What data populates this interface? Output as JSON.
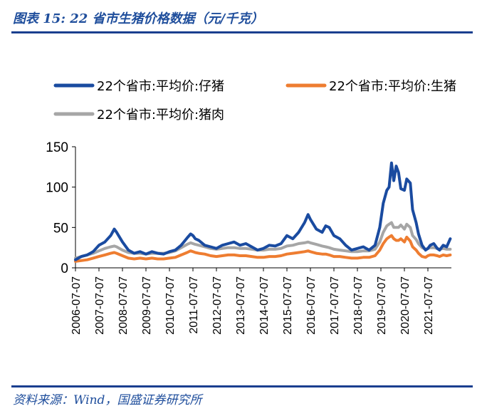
{
  "header": {
    "title": "图表 15:  22 省市生猪价格数据（元/千克）"
  },
  "footer": {
    "source": "资料来源：Wind，国盛证券研究所"
  },
  "chart_data": {
    "type": "line",
    "title": "",
    "xlabel": "",
    "ylabel": "",
    "ylim": [
      0,
      150
    ],
    "yticks": [
      0,
      50,
      100,
      150
    ],
    "xtick_labels": [
      "2006-07-07",
      "2007-07-07",
      "2008-07-07",
      "2009-07-07",
      "2010-07-07",
      "2011-07-07",
      "2012-07-07",
      "2013-07-07",
      "2014-07-07",
      "2015-07-07",
      "2016-07-07",
      "2017-07-07",
      "2018-07-07",
      "2019-07-07",
      "2020-07-07",
      "2021-07-07"
    ],
    "x_start_year": 2006.5,
    "x_end_year": 2022.5,
    "grid": false,
    "legend": "top",
    "x_years": [
      2006.5,
      2006.75,
      2007.0,
      2007.25,
      2007.5,
      2007.75,
      2008.0,
      2008.15,
      2008.25,
      2008.5,
      2008.75,
      2009.0,
      2009.25,
      2009.5,
      2009.75,
      2010.0,
      2010.25,
      2010.5,
      2010.75,
      2011.0,
      2011.25,
      2011.4,
      2011.5,
      2011.6,
      2011.75,
      2012.0,
      2012.25,
      2012.5,
      2012.75,
      2013.0,
      2013.25,
      2013.5,
      2013.75,
      2014.0,
      2014.25,
      2014.5,
      2014.75,
      2015.0,
      2015.25,
      2015.5,
      2015.75,
      2016.0,
      2016.25,
      2016.4,
      2016.5,
      2016.75,
      2017.0,
      2017.15,
      2017.3,
      2017.5,
      2017.75,
      2018.0,
      2018.25,
      2018.5,
      2018.75,
      2019.0,
      2019.25,
      2019.45,
      2019.6,
      2019.75,
      2019.85,
      2019.95,
      2020.05,
      2020.15,
      2020.25,
      2020.35,
      2020.5,
      2020.6,
      2020.75,
      2020.85,
      2021.0,
      2021.1,
      2021.25,
      2021.4,
      2021.5,
      2021.6,
      2021.75,
      2021.9,
      2022.0,
      2022.15,
      2022.3,
      2022.45
    ],
    "series": [
      {
        "name": "22个省市:平均价:仔猪",
        "color": "#1a4ba0",
        "values": [
          10,
          14,
          16,
          20,
          28,
          32,
          40,
          48,
          44,
          32,
          22,
          18,
          20,
          17,
          20,
          18,
          17,
          20,
          22,
          28,
          37,
          42,
          40,
          36,
          34,
          28,
          26,
          24,
          28,
          30,
          32,
          28,
          30,
          26,
          22,
          24,
          28,
          27,
          30,
          40,
          36,
          44,
          56,
          66,
          60,
          48,
          44,
          52,
          50,
          40,
          36,
          28,
          22,
          24,
          26,
          22,
          28,
          50,
          80,
          96,
          100,
          130,
          108,
          126,
          118,
          98,
          96,
          110,
          105,
          72,
          56,
          42,
          28,
          22,
          24,
          28,
          30,
          24,
          22,
          28,
          26,
          36
        ]
      },
      {
        "name": "22个省市:平均价:生猪",
        "color": "#ee7d31",
        "values": [
          8,
          9,
          10,
          12,
          14,
          16,
          18,
          19,
          18,
          15,
          12,
          11,
          12,
          11,
          12,
          11,
          11,
          12,
          13,
          16,
          19,
          21,
          20,
          19,
          18,
          17,
          15,
          14,
          15,
          16,
          16,
          15,
          15,
          14,
          13,
          13,
          14,
          14,
          15,
          17,
          18,
          19,
          20,
          21,
          20,
          18,
          17,
          17,
          16,
          14,
          14,
          13,
          12,
          12,
          13,
          13,
          15,
          22,
          30,
          36,
          38,
          40,
          36,
          34,
          34,
          36,
          32,
          38,
          33,
          26,
          22,
          18,
          14,
          13,
          15,
          16,
          16,
          15,
          14,
          16,
          15,
          16
        ]
      },
      {
        "name": "22个省市:平均价:猪肉",
        "color": "#a6a6a6",
        "values": [
          12,
          14,
          16,
          18,
          21,
          24,
          26,
          27,
          26,
          22,
          19,
          18,
          18,
          17,
          18,
          18,
          18,
          19,
          21,
          25,
          29,
          31,
          30,
          29,
          28,
          26,
          24,
          23,
          24,
          25,
          25,
          24,
          24,
          23,
          22,
          22,
          23,
          23,
          24,
          27,
          28,
          30,
          31,
          32,
          31,
          29,
          27,
          26,
          25,
          23,
          22,
          21,
          20,
          20,
          21,
          21,
          23,
          32,
          44,
          52,
          54,
          56,
          50,
          50,
          50,
          53,
          48,
          54,
          50,
          40,
          35,
          30,
          25,
          23,
          24,
          25,
          25,
          24,
          23,
          24,
          23,
          23
        ]
      }
    ]
  }
}
